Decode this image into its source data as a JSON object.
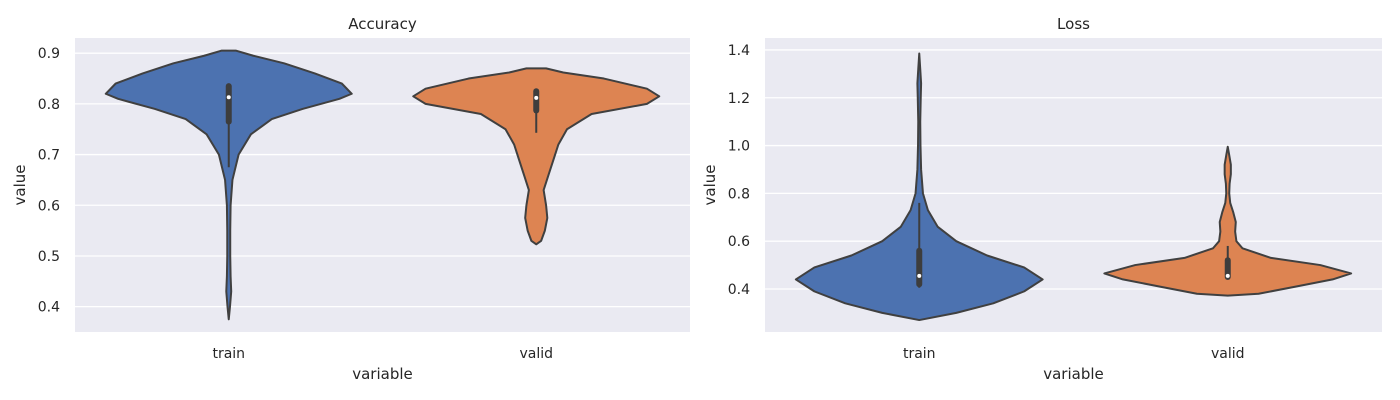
{
  "chart_data": [
    {
      "type": "violin",
      "title": "Accuracy",
      "xlabel": "variable",
      "ylabel": "value",
      "categories": [
        "train",
        "valid"
      ],
      "ylim": [
        0.35,
        0.93
      ],
      "yticks": [
        0.4,
        0.5,
        0.6,
        0.7,
        0.8,
        0.9
      ],
      "grid": true,
      "series": [
        {
          "color": "#4c72b0",
          "median": 0.813,
          "q1": 0.765,
          "q3": 0.835,
          "whisker_low": 0.675,
          "whisker_high": 0.838,
          "density": [
            [
              0.375,
              0.0
            ],
            [
              0.4,
              0.01
            ],
            [
              0.43,
              0.02
            ],
            [
              0.46,
              0.015
            ],
            [
              0.5,
              0.012
            ],
            [
              0.55,
              0.012
            ],
            [
              0.6,
              0.015
            ],
            [
              0.65,
              0.03
            ],
            [
              0.7,
              0.08
            ],
            [
              0.74,
              0.18
            ],
            [
              0.77,
              0.35
            ],
            [
              0.79,
              0.6
            ],
            [
              0.81,
              0.9
            ],
            [
              0.82,
              1.0
            ],
            [
              0.84,
              0.92
            ],
            [
              0.86,
              0.7
            ],
            [
              0.88,
              0.45
            ],
            [
              0.895,
              0.2
            ],
            [
              0.905,
              0.06
            ]
          ]
        },
        {
          "color": "#dd8452",
          "median": 0.812,
          "q1": 0.787,
          "q3": 0.825,
          "whisker_low": 0.743,
          "whisker_high": 0.828,
          "density": [
            [
              0.523,
              0.0
            ],
            [
              0.53,
              0.04
            ],
            [
              0.55,
              0.07
            ],
            [
              0.575,
              0.09
            ],
            [
              0.6,
              0.08
            ],
            [
              0.63,
              0.06
            ],
            [
              0.66,
              0.1
            ],
            [
              0.69,
              0.14
            ],
            [
              0.72,
              0.18
            ],
            [
              0.75,
              0.25
            ],
            [
              0.78,
              0.45
            ],
            [
              0.8,
              0.9
            ],
            [
              0.815,
              1.0
            ],
            [
              0.83,
              0.9
            ],
            [
              0.85,
              0.55
            ],
            [
              0.862,
              0.22
            ],
            [
              0.87,
              0.08
            ]
          ]
        }
      ]
    },
    {
      "type": "violin",
      "title": "Loss",
      "xlabel": "variable",
      "ylabel": "value",
      "categories": [
        "train",
        "valid"
      ],
      "ylim": [
        0.22,
        1.45
      ],
      "yticks": [
        0.4,
        0.6,
        0.8,
        1.0,
        1.2,
        1.4
      ],
      "grid": true,
      "series": [
        {
          "color": "#4c72b0",
          "median": 0.455,
          "q1": 0.42,
          "q3": 0.56,
          "whisker_low": 0.405,
          "whisker_high": 0.76,
          "density": [
            [
              0.27,
              0.0
            ],
            [
              0.3,
              0.3
            ],
            [
              0.34,
              0.6
            ],
            [
              0.39,
              0.85
            ],
            [
              0.44,
              1.0
            ],
            [
              0.49,
              0.85
            ],
            [
              0.54,
              0.55
            ],
            [
              0.6,
              0.3
            ],
            [
              0.66,
              0.15
            ],
            [
              0.73,
              0.07
            ],
            [
              0.8,
              0.03
            ],
            [
              0.9,
              0.015
            ],
            [
              1.0,
              0.01
            ],
            [
              1.1,
              0.008
            ],
            [
              1.2,
              0.012
            ],
            [
              1.26,
              0.015
            ],
            [
              1.32,
              0.008
            ],
            [
              1.385,
              0.0
            ]
          ]
        },
        {
          "color": "#dd8452",
          "median": 0.455,
          "q1": 0.45,
          "q3": 0.52,
          "whisker_low": 0.445,
          "whisker_high": 0.58,
          "density": [
            [
              0.372,
              0.0
            ],
            [
              0.38,
              0.25
            ],
            [
              0.41,
              0.55
            ],
            [
              0.44,
              0.85
            ],
            [
              0.465,
              1.0
            ],
            [
              0.5,
              0.75
            ],
            [
              0.53,
              0.35
            ],
            [
              0.57,
              0.12
            ],
            [
              0.6,
              0.07
            ],
            [
              0.64,
              0.06
            ],
            [
              0.68,
              0.065
            ],
            [
              0.72,
              0.045
            ],
            [
              0.76,
              0.02
            ],
            [
              0.8,
              0.012
            ],
            [
              0.84,
              0.015
            ],
            [
              0.88,
              0.025
            ],
            [
              0.92,
              0.025
            ],
            [
              0.96,
              0.012
            ],
            [
              0.995,
              0.0
            ]
          ]
        }
      ]
    }
  ]
}
